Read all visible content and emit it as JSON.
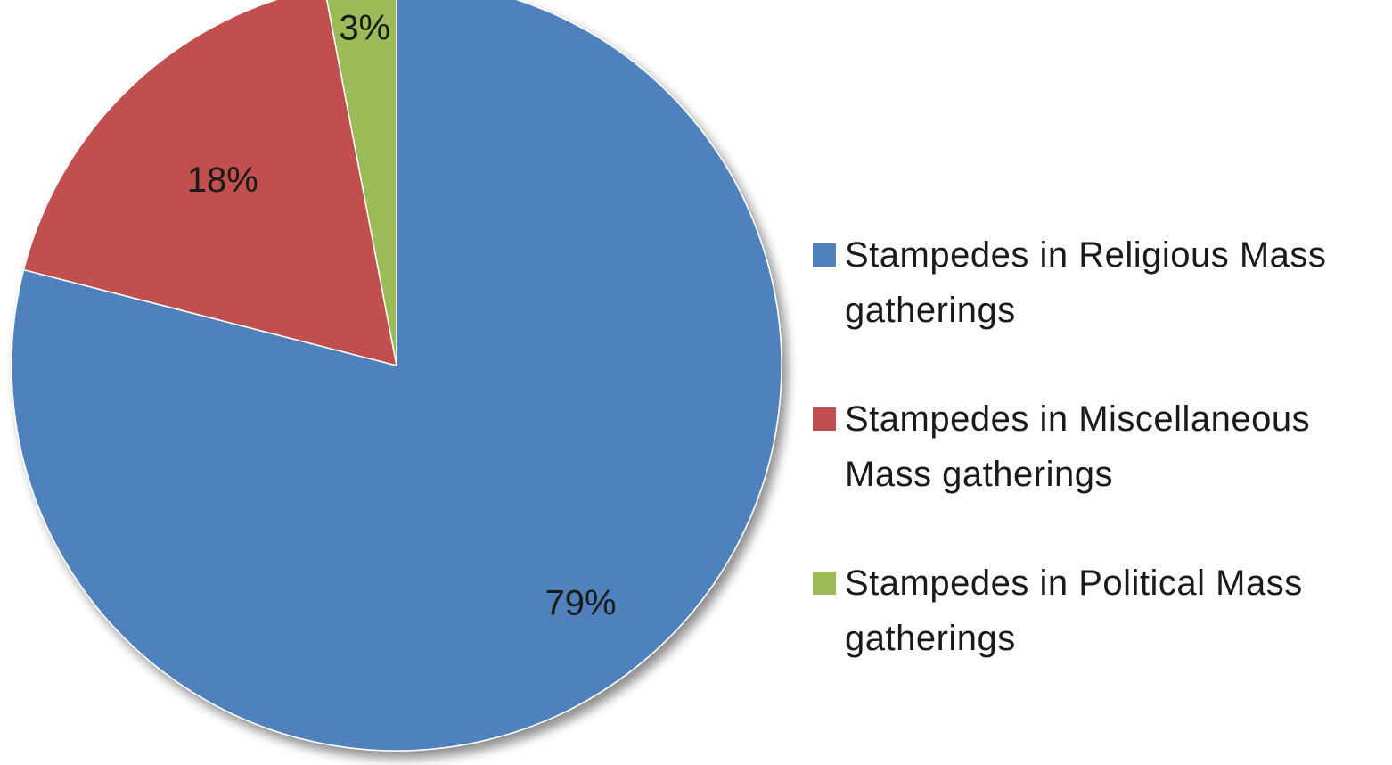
{
  "chart_data": {
    "type": "pie",
    "title": "",
    "legend_position": "right",
    "slices": [
      {
        "name": "Stampedes in Religious Mass gatherings",
        "value": 79,
        "label": "79%",
        "color": "#4f81bd"
      },
      {
        "name": "Stampedes in Miscellaneous Mass gatherings",
        "value": 18,
        "label": "18%",
        "color": "#c0504d"
      },
      {
        "name": "Stampedes in Political Mass gatherings",
        "value": 3,
        "label": "3%",
        "color": "#9bbb59"
      }
    ]
  }
}
